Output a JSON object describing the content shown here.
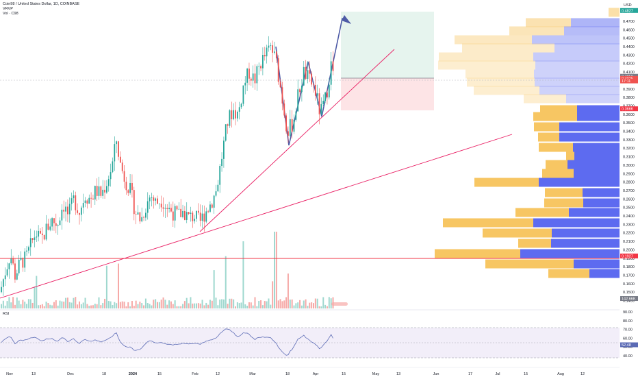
{
  "header": {
    "symbol_line": "Coin98 / United States Dollar, 1D, COINBASE",
    "vrvp_label": "VRVP",
    "vol_label": "Vol · C98",
    "currency": "USD",
    "rsi_label": "RSI"
  },
  "colors": {
    "up": "#26a69a",
    "down": "#ef5350",
    "vol_up": "#9fd8cf",
    "vol_down": "#f6a9a7",
    "trend": "#e91e63",
    "arrow": "#4e5ba6",
    "support": "#f23645",
    "rsi": "#5b6bb5",
    "vp_blue": "#5d6bf0",
    "vp_orange": "#f7c663",
    "tp_zone": "#e6f4ee",
    "sl_zone": "#fde4e6"
  },
  "chart_data": {
    "type": "candlestick",
    "price_axis": {
      "min": 0.14,
      "max": 0.47,
      "ticks": [
        "0.4700",
        "0.4600",
        "0.4500",
        "0.4400",
        "0.4300",
        "0.4200",
        "0.4100",
        "0.4000",
        "0.3900",
        "0.3800",
        "0.3700",
        "0.3600",
        "0.3500",
        "0.3400",
        "0.3300",
        "0.3200",
        "0.3100",
        "0.3000",
        "0.2900",
        "0.2800",
        "0.2700",
        "0.2600",
        "0.2500",
        "0.2400",
        "0.2300",
        "0.2200",
        "0.2100",
        "0.2000",
        "0.1900",
        "0.1800",
        "0.1700",
        "0.1600",
        "0.1500",
        "0.1400"
      ]
    },
    "time_axis": [
      "Nov",
      "13",
      "Dec",
      "18",
      "2024",
      "15",
      "Feb",
      "12",
      "Mar",
      "18",
      "Apr",
      "15",
      "May",
      "13",
      "Jun",
      "17",
      "Jul",
      "15",
      "Aug",
      "12"
    ],
    "time_axis_bold": [
      "2024"
    ],
    "price_tags": [
      {
        "label": "0.4827",
        "value": 0.4827,
        "color": "#26a69a"
      },
      {
        "label": "0.4050",
        "value": 0.405,
        "color": "#787b86"
      },
      {
        "label": "0.4025",
        "value": 0.4025,
        "color": "#ef5350"
      },
      {
        "label": "17:11",
        "value": 0.3995,
        "color": "#ef5350"
      },
      {
        "label": "0.3666",
        "value": 0.3666,
        "color": "#f23645"
      },
      {
        "label": "0.1927",
        "value": 0.1927,
        "color": "#f23645"
      },
      {
        "label": "142.66K",
        "value": 0.1424,
        "color": "#787b86"
      }
    ],
    "rsi": {
      "ticks": [
        "90.00",
        "80.00",
        "70.00",
        "60.00",
        "50.00",
        "40.00"
      ],
      "current": "52.48",
      "upper_band": 70,
      "lower_band": 30
    }
  }
}
